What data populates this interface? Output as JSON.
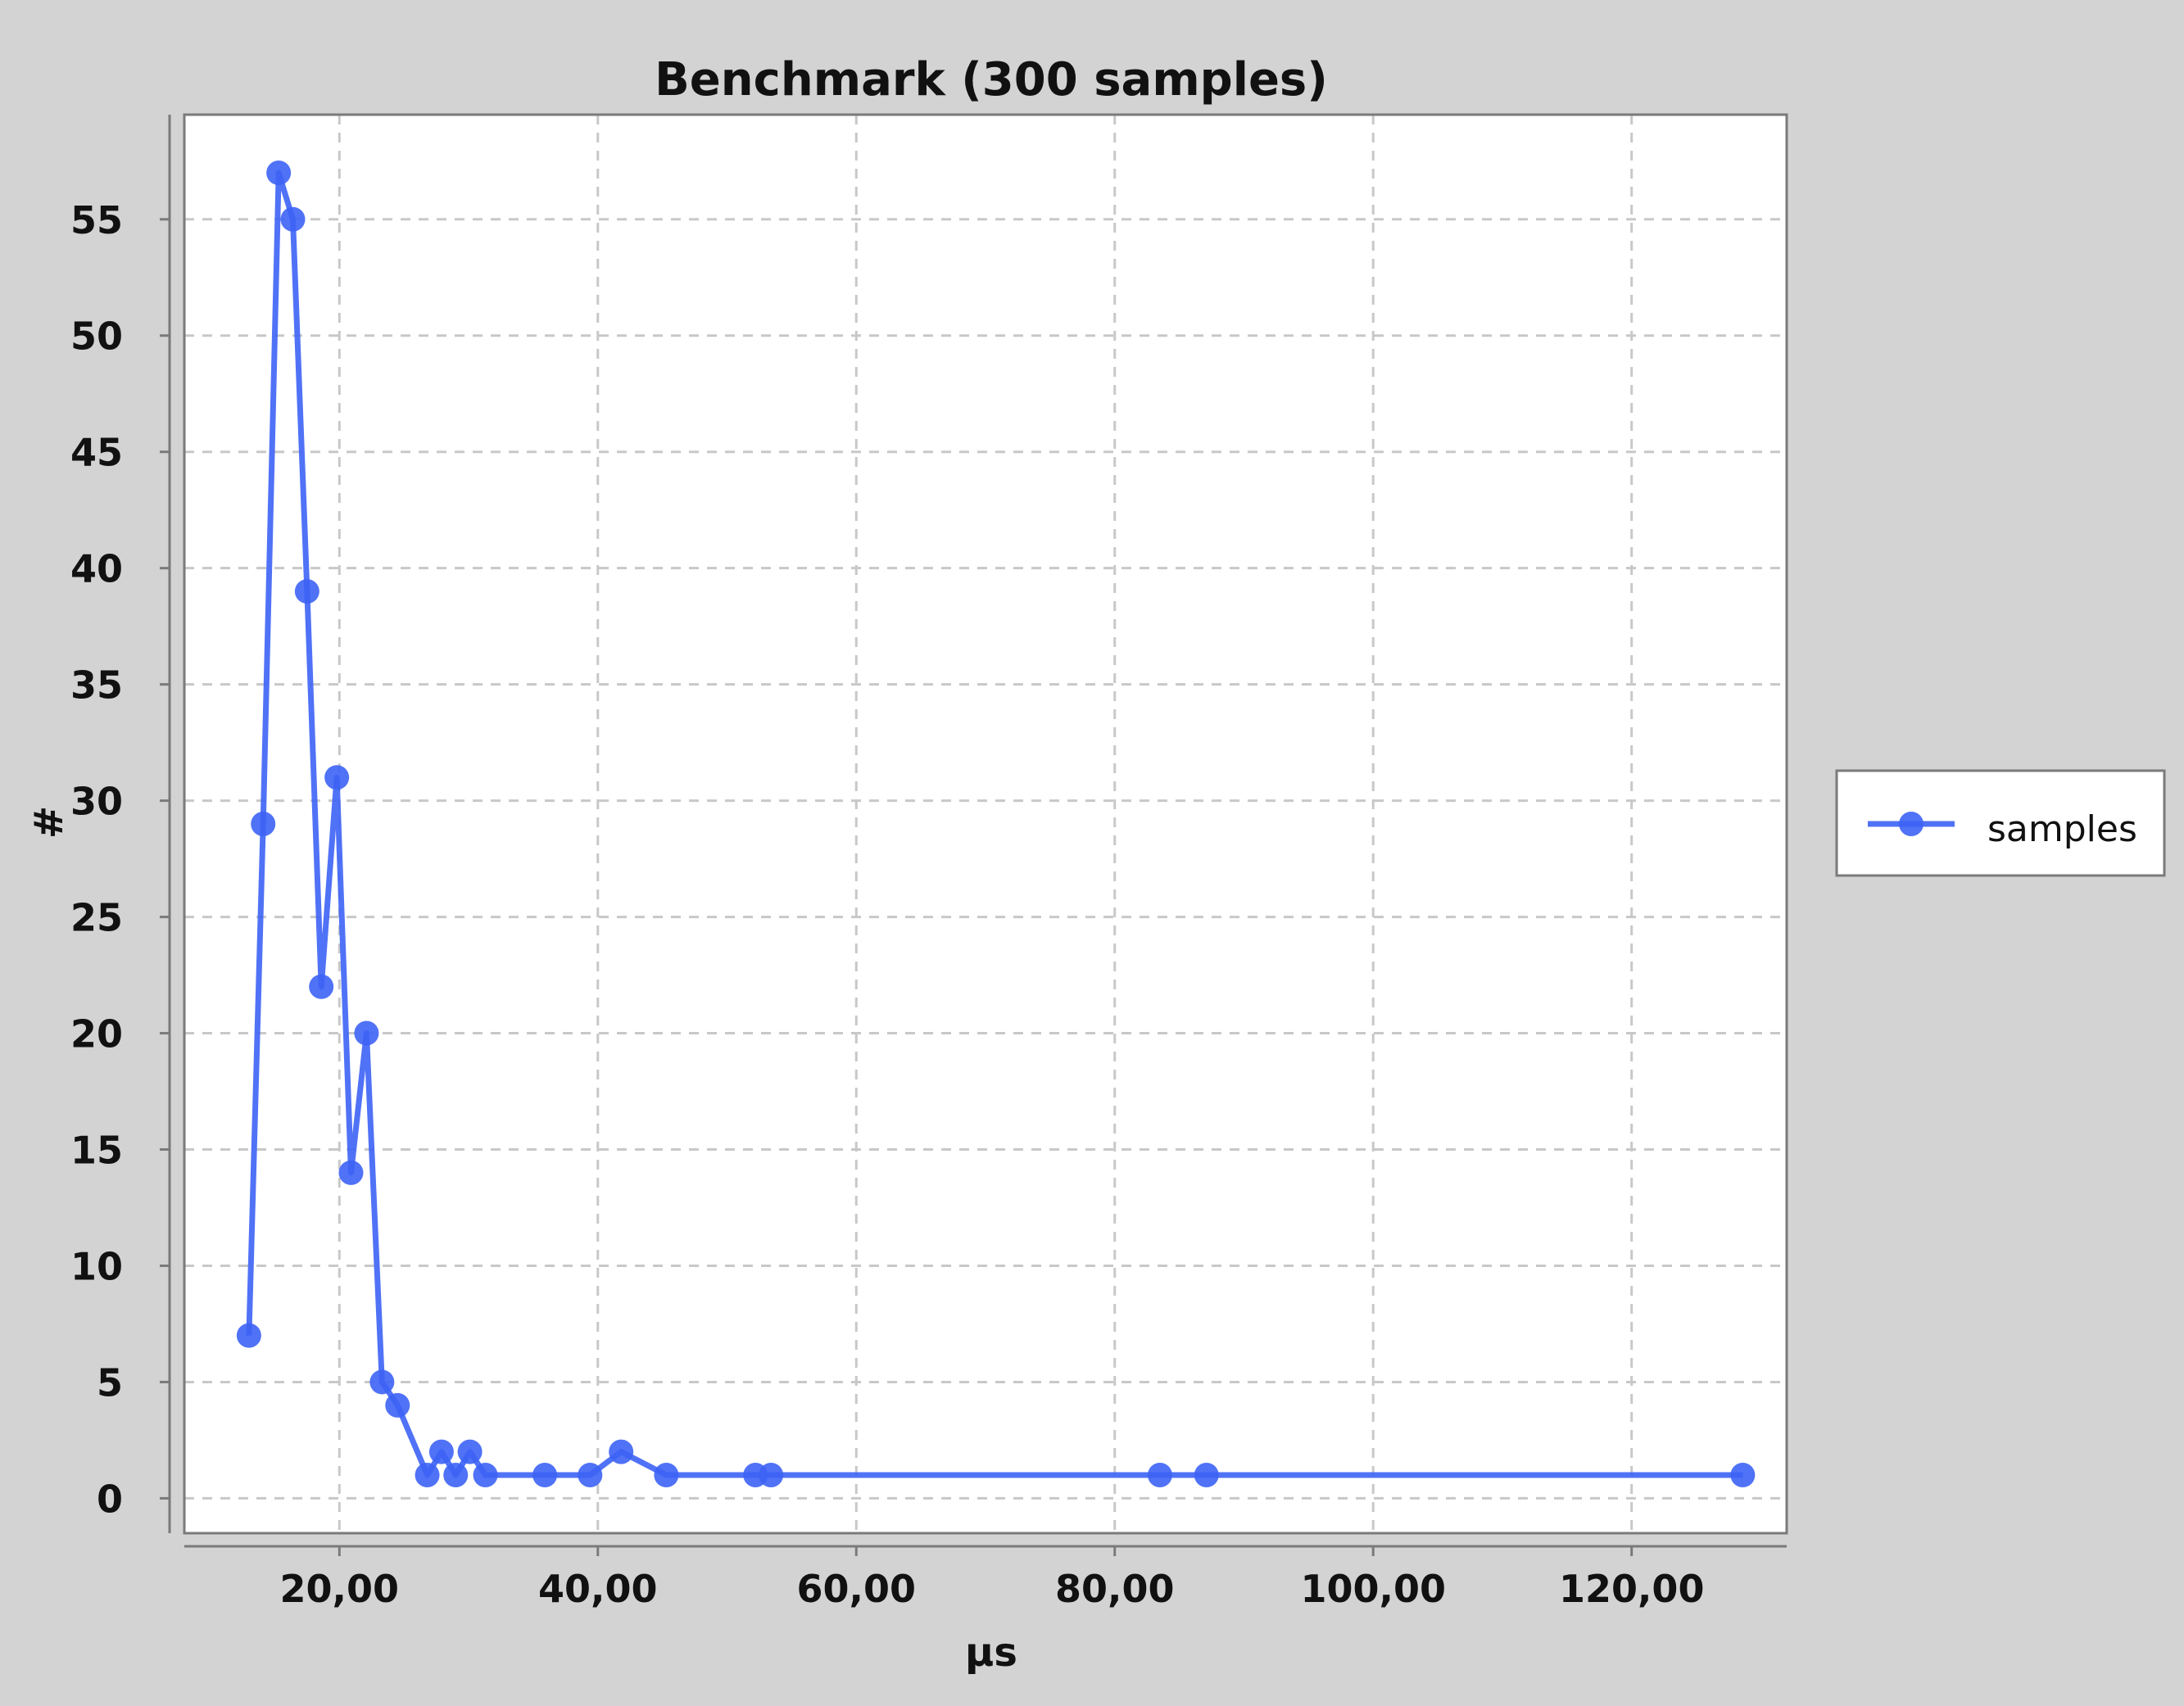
{
  "chart_data": {
    "type": "line",
    "title": "Benchmark (300 samples)",
    "xlabel": "µs",
    "ylabel": "#",
    "xlim": [
      8,
      132
    ],
    "ylim": [
      -1.5,
      59.5
    ],
    "x_ticks": [
      {
        "value": 20,
        "label": "20,00"
      },
      {
        "value": 40,
        "label": "40,00"
      },
      {
        "value": 60,
        "label": "60,00"
      },
      {
        "value": 80,
        "label": "80,00"
      },
      {
        "value": 100,
        "label": "100,00"
      },
      {
        "value": 120,
        "label": "120,00"
      }
    ],
    "y_ticks": [
      {
        "value": 0,
        "label": "0"
      },
      {
        "value": 5,
        "label": "5"
      },
      {
        "value": 10,
        "label": "10"
      },
      {
        "value": 15,
        "label": "15"
      },
      {
        "value": 20,
        "label": "20"
      },
      {
        "value": 25,
        "label": "25"
      },
      {
        "value": 30,
        "label": "30"
      },
      {
        "value": 35,
        "label": "35"
      },
      {
        "value": 40,
        "label": "40"
      },
      {
        "value": 45,
        "label": "45"
      },
      {
        "value": 50,
        "label": "50"
      },
      {
        "value": 55,
        "label": "55"
      }
    ],
    "grid": true,
    "legend": {
      "position": "right",
      "entries": [
        "samples"
      ]
    },
    "series": [
      {
        "name": "samples",
        "color": "#3d63f5",
        "x": [
          13.0,
          14.1,
          15.3,
          16.4,
          17.5,
          18.6,
          19.8,
          20.9,
          22.1,
          23.3,
          24.5,
          26.8,
          27.9,
          29.0,
          30.1,
          31.3,
          35.9,
          39.4,
          41.8,
          45.3,
          52.2,
          53.4,
          83.5,
          87.1,
          128.6
        ],
        "y": [
          7,
          29,
          57,
          55,
          39,
          22,
          31,
          14,
          20,
          5,
          4,
          1,
          2,
          1,
          2,
          1,
          1,
          1,
          2,
          1,
          1,
          1,
          1,
          1,
          1
        ]
      }
    ]
  }
}
